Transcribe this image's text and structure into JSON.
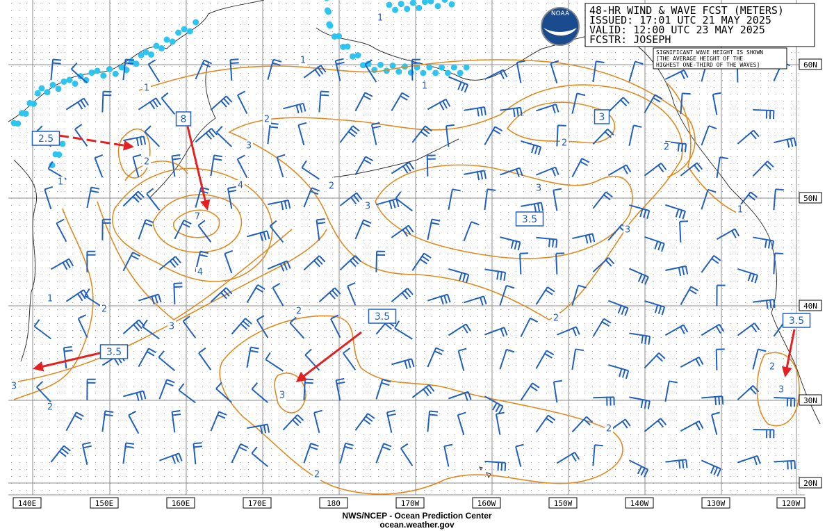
{
  "header": {
    "title": "48-HR WIND & WAVE FCST (METERS)",
    "issued": "ISSUED: 17:01 UTC 21 MAY 2025",
    "valid": "VALID:  12:00 UTC 23 MAY 2025",
    "forecaster": "FCSTR: JOSEPH",
    "logo": "NOAA"
  },
  "note": [
    "SIGNIFICANT WAVE HEIGHT IS SHOWN",
    "[THE AVERAGE HEIGHT OF THE",
    "HIGHEST ONE-THIRD OF THE WAVES]"
  ],
  "longitudes": [
    "140E",
    "150E",
    "160E",
    "170E",
    "180",
    "170W",
    "160W",
    "150W",
    "140W",
    "130W",
    "120W"
  ],
  "latitudes": [
    "60N",
    "50N",
    "40N",
    "30N",
    "20N"
  ],
  "boxed_labels": [
    "2.5",
    "8",
    "3",
    "3.5",
    "3.5",
    "3.5",
    "3.5"
  ],
  "contour_labels": [
    "1",
    "1",
    "1",
    "1",
    "1",
    "1",
    "1",
    "2",
    "2",
    "2",
    "2",
    "2",
    "2",
    "2",
    "2",
    "2",
    "2",
    "2",
    "2",
    "3",
    "3",
    "3",
    "3",
    "3",
    "3",
    "3",
    "3",
    "4",
    "4",
    "7"
  ],
  "footer": [
    "NWS/NCEP - Ocean Prediction Center",
    "ocean.weather.gov"
  ]
}
